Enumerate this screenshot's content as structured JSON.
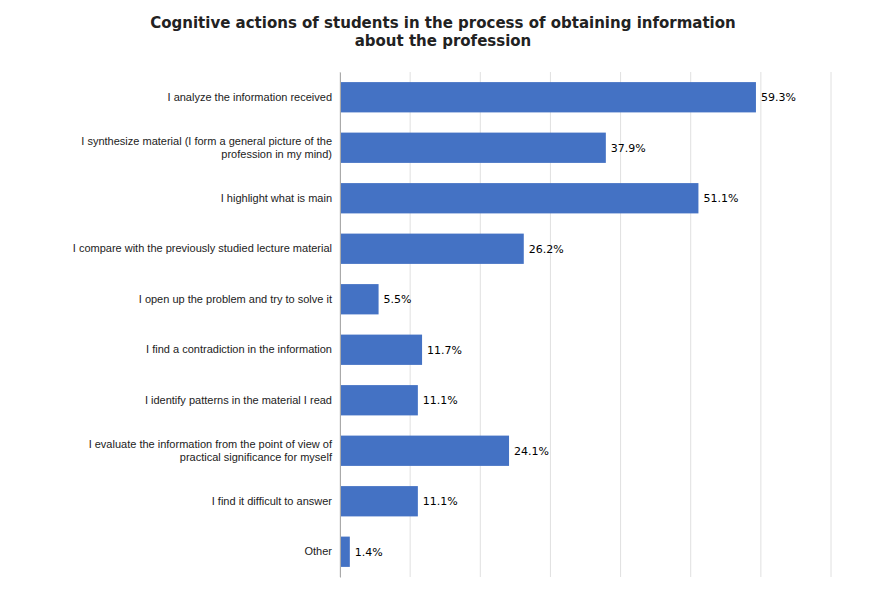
{
  "chart_data": {
    "type": "bar",
    "orientation": "horizontal",
    "title": "Cognitive actions of students in the process of obtaining information\nabout the profession",
    "categories": [
      "I analyze the information received",
      "I synthesize material (I form a general picture of the\nprofession in my mind)",
      "I highlight what is main",
      "I compare with the previously studied lecture material",
      "I open up the problem and try to solve it",
      "I find a contradiction in the information",
      "I identify patterns in the material I read",
      "I evaluate the information from the point of view of\npractical significance for myself",
      "I find it difficult to answer",
      "Other"
    ],
    "values": [
      59.3,
      37.9,
      51.1,
      26.2,
      5.5,
      11.7,
      11.1,
      24.1,
      11.1,
      1.4
    ],
    "value_labels": [
      "59.3%",
      "37.9%",
      "51.1%",
      "26.2%",
      "5.5%",
      "11.7%",
      "11.1%",
      "24.1%",
      "11.1%",
      "1.4%"
    ],
    "color": "#4472C4",
    "xlim": [
      0,
      70
    ],
    "xticks": [
      0,
      10,
      20,
      30,
      40,
      50,
      60,
      70
    ],
    "grid": true,
    "tick_labels": "y"
  }
}
